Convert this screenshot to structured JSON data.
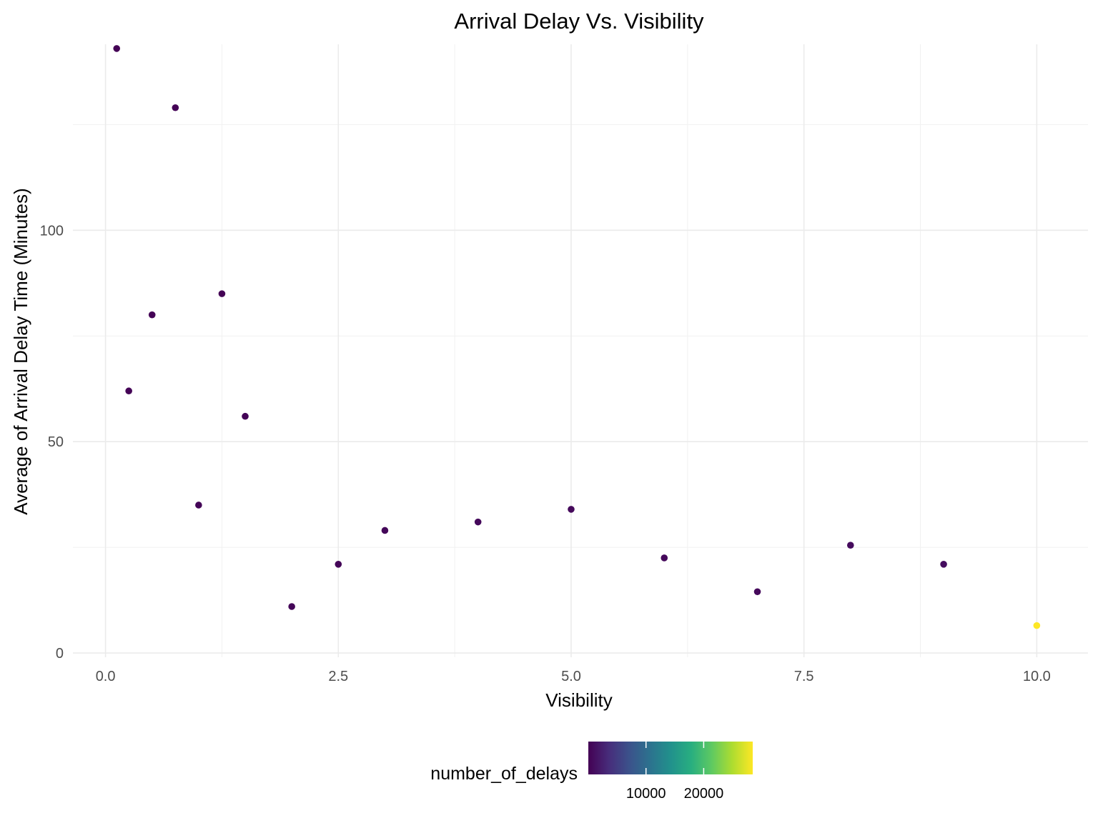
{
  "chart_data": {
    "type": "scatter",
    "title": "Arrival Delay Vs. Visibility",
    "xlabel": "Visibility",
    "ylabel": "Average of Arrival Delay Time (Minutes)",
    "xlim": [
      -0.35,
      10.55
    ],
    "ylim": [
      -1,
      144
    ],
    "x_ticks": [
      0,
      2.5,
      5,
      7.5,
      10
    ],
    "x_tick_labels": [
      "0.0",
      "2.5",
      "5.0",
      "7.5",
      "10.0"
    ],
    "y_ticks": [
      0,
      50,
      100
    ],
    "y_tick_labels": [
      "0",
      "50",
      "100"
    ],
    "grid": true,
    "legend": {
      "title": "number_of_delays",
      "position": "bottom",
      "type": "colorbar",
      "palette": "viridis",
      "range": [
        0,
        28500
      ],
      "ticks": [
        10000,
        20000
      ],
      "tick_labels": [
        "10000",
        "20000"
      ]
    },
    "points": [
      {
        "x": 0.12,
        "y": 143.0,
        "number_of_delays": 60
      },
      {
        "x": 0.25,
        "y": 62.0,
        "number_of_delays": 150
      },
      {
        "x": 0.5,
        "y": 80.0,
        "number_of_delays": 200
      },
      {
        "x": 0.75,
        "y": 129.0,
        "number_of_delays": 180
      },
      {
        "x": 1.0,
        "y": 35.0,
        "number_of_delays": 300
      },
      {
        "x": 1.25,
        "y": 85.0,
        "number_of_delays": 120
      },
      {
        "x": 1.5,
        "y": 56.0,
        "number_of_delays": 250
      },
      {
        "x": 2.0,
        "y": 11.0,
        "number_of_delays": 400
      },
      {
        "x": 2.5,
        "y": 21.0,
        "number_of_delays": 350
      },
      {
        "x": 3.0,
        "y": 29.0,
        "number_of_delays": 500
      },
      {
        "x": 4.0,
        "y": 31.0,
        "number_of_delays": 550
      },
      {
        "x": 5.0,
        "y": 34.0,
        "number_of_delays": 650
      },
      {
        "x": 6.0,
        "y": 22.5,
        "number_of_delays": 600
      },
      {
        "x": 7.0,
        "y": 14.5,
        "number_of_delays": 650
      },
      {
        "x": 8.0,
        "y": 25.5,
        "number_of_delays": 800
      },
      {
        "x": 9.0,
        "y": 21.0,
        "number_of_delays": 1000
      },
      {
        "x": 10.0,
        "y": 6.5,
        "number_of_delays": 28500
      }
    ]
  }
}
